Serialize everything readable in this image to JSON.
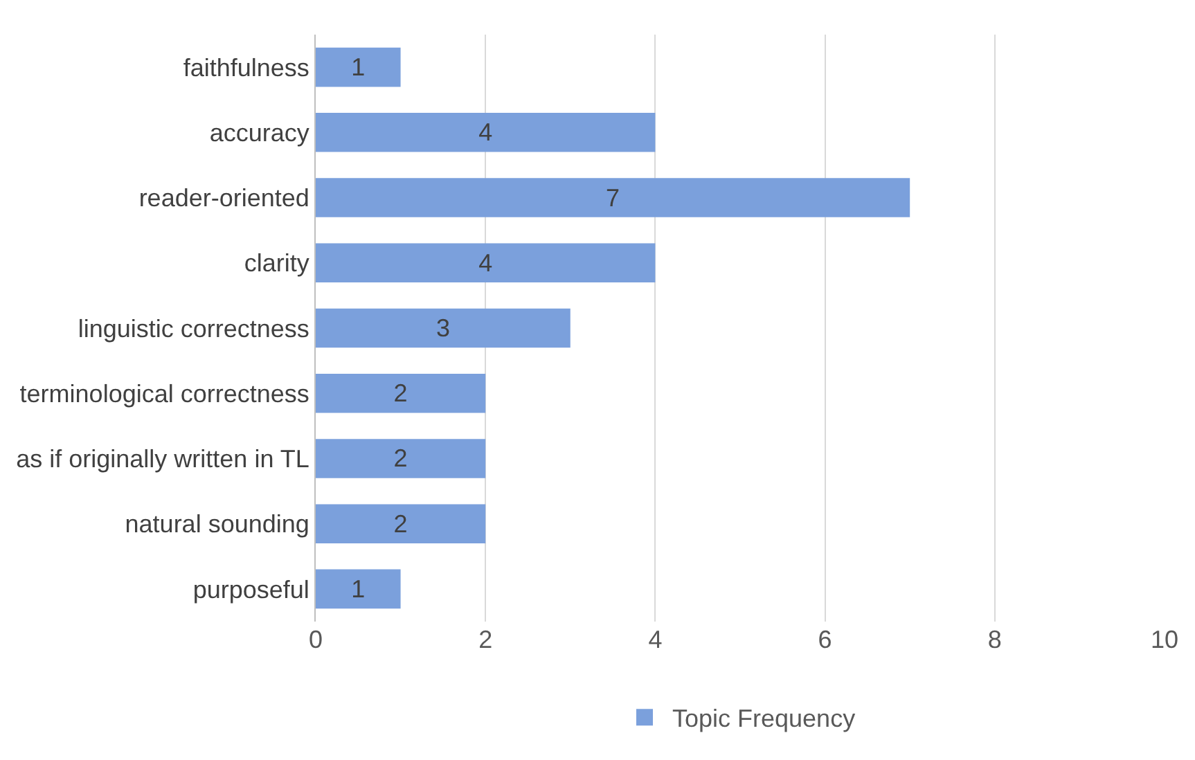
{
  "chart_data": {
    "type": "bar",
    "orientation": "horizontal",
    "categories": [
      "faithfulness",
      "accuracy",
      "reader-oriented",
      "clarity",
      "linguistic correctness",
      "terminological correctness",
      "as if originally written in TL",
      "natural sounding",
      "purposeful"
    ],
    "series": [
      {
        "name": "Topic Frequency",
        "color": "#7ba0dc",
        "values": [
          1,
          4,
          7,
          4,
          3,
          2,
          2,
          2,
          1
        ]
      }
    ],
    "xlim": [
      0,
      10
    ],
    "xticks": [
      0,
      2,
      4,
      6,
      8,
      10
    ],
    "grid": "x",
    "legend": "bottom",
    "data_labels": true
  }
}
